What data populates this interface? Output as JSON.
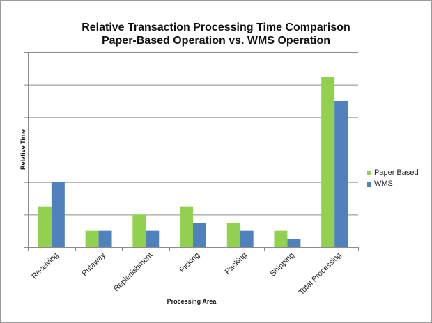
{
  "chart_data": {
    "type": "bar",
    "title": "Relative Transaction Processing Time Comparison",
    "subtitle": "Paper-Based Operation vs. WMS Operation",
    "xlabel": "Processing Area",
    "ylabel": "Relative Time",
    "categories": [
      "Receiving",
      "Putaway",
      "Replenishment",
      "Picking",
      "Packing",
      "Shipping",
      "Total Processing"
    ],
    "series": [
      {
        "name": "Paper Based",
        "color": "#92d050",
        "values": [
          2.5,
          1.0,
          2.0,
          2.5,
          1.5,
          1.0,
          10.5
        ]
      },
      {
        "name": "WMS",
        "color": "#4f81bd",
        "values": [
          4.0,
          1.0,
          1.0,
          1.5,
          1.0,
          0.5,
          9.0
        ]
      }
    ],
    "ylim": [
      0,
      12
    ],
    "y_gridline_step": 2,
    "grid": true,
    "legend": "right",
    "gridline_color": "#8c8c8c"
  }
}
